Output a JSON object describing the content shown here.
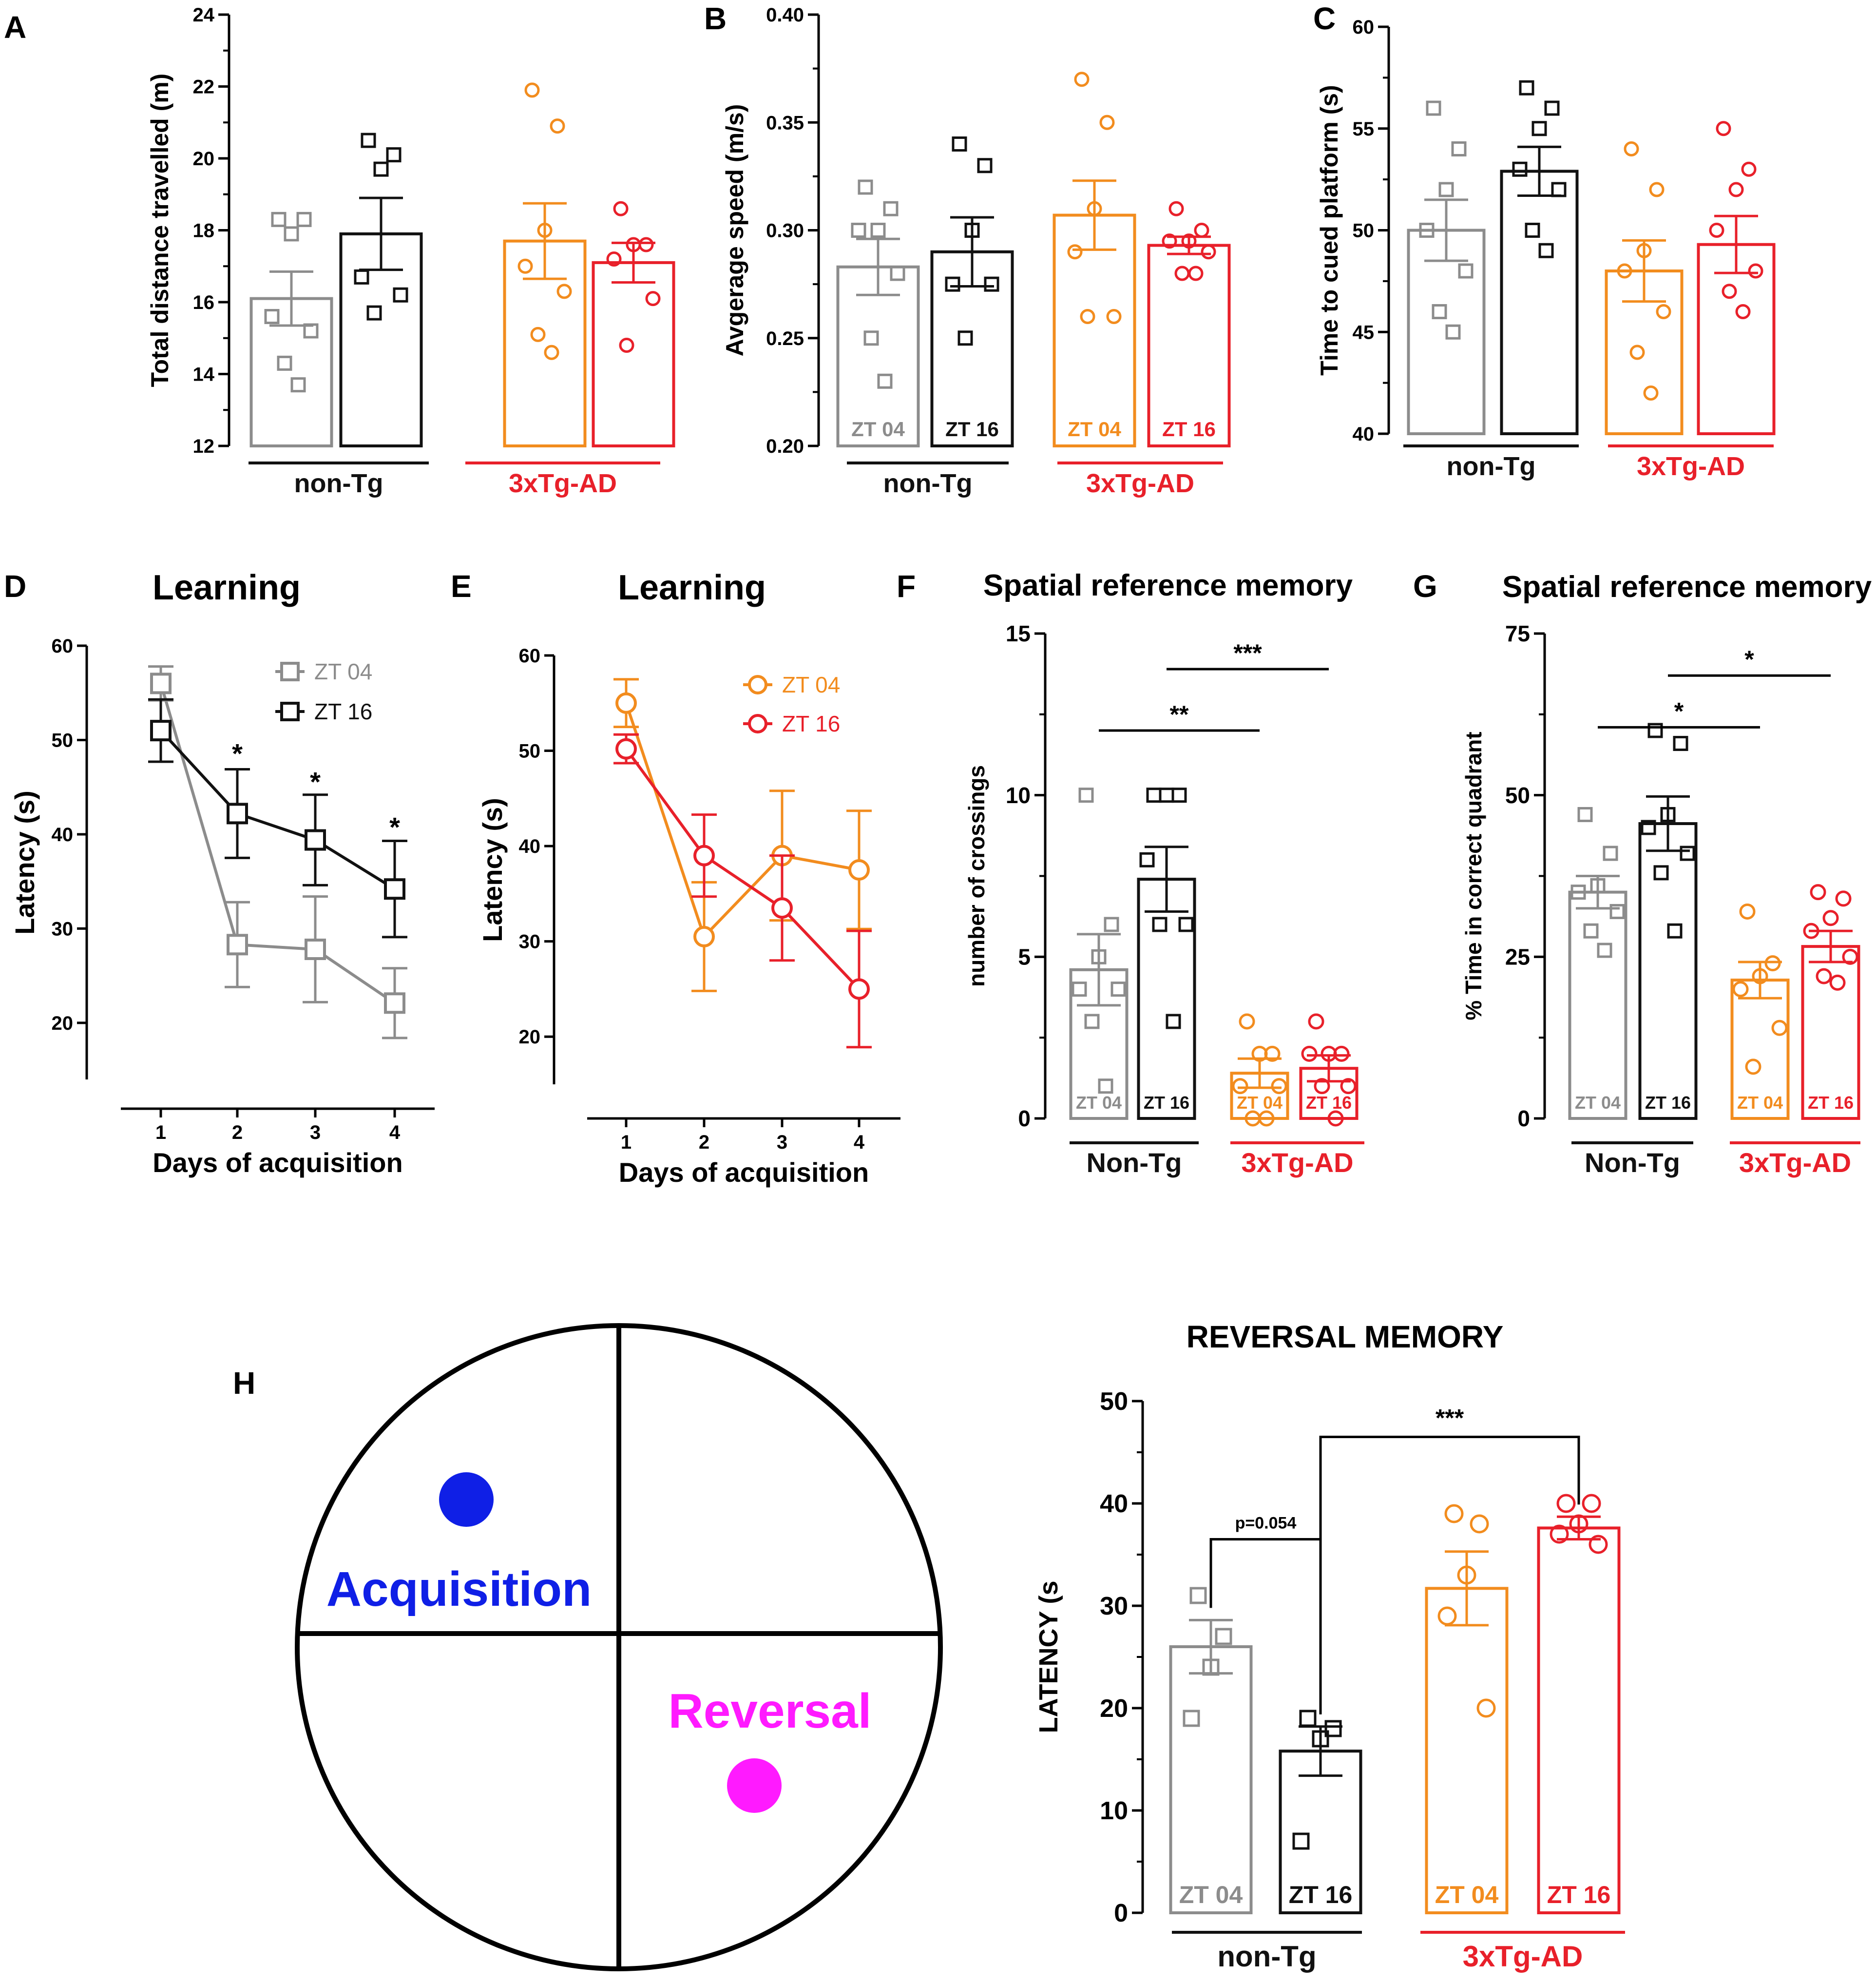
{
  "colors": {
    "grey": "#8c8c8c",
    "black": "#111111",
    "orange": "#f28c1e",
    "red": "#e8202a",
    "blue": "#0f1fe6",
    "magenta": "#ff1aff"
  },
  "panel_letters": [
    "A",
    "B",
    "C",
    "D",
    "E",
    "F",
    "G",
    "H"
  ],
  "groups": {
    "nontg_lower": "non-Tg",
    "nontg_cap": "Non-Tg",
    "tg": "3xTg-AD"
  },
  "h_quadrants": {
    "acquisition": "Acquisition",
    "reversal": "Reversal"
  },
  "chart_data": [
    {
      "id": "A",
      "type": "bar",
      "title": "",
      "ylabel": "Total distance travelled (m)",
      "ylim": [
        12,
        24
      ],
      "yticks": [
        "12",
        "14",
        "16",
        "18",
        "20",
        "22",
        "24"
      ],
      "bar_labels": [
        "",
        "",
        "",
        ""
      ],
      "group_labels": [
        "non-Tg",
        "3xTg-AD"
      ],
      "series": [
        {
          "name": "non-Tg ZT 04",
          "mean": 16.1,
          "sem": 0.75,
          "points": [
            18.3,
            18.3,
            17.9,
            15.6,
            15.2,
            14.3,
            13.7
          ]
        },
        {
          "name": "non-Tg ZT 16",
          "mean": 17.9,
          "sem": 1.0,
          "points": [
            20.5,
            20.1,
            19.7,
            16.7,
            16.2,
            15.7
          ]
        },
        {
          "name": "3xTg-AD ZT 04",
          "mean": 17.7,
          "sem": 1.05,
          "points": [
            21.9,
            20.9,
            18.0,
            17.0,
            16.3,
            15.1,
            14.6
          ]
        },
        {
          "name": "3xTg-AD ZT 16",
          "mean": 17.1,
          "sem": 0.55,
          "points": [
            18.6,
            17.6,
            17.6,
            17.2,
            16.1,
            14.8
          ]
        }
      ]
    },
    {
      "id": "B",
      "type": "bar",
      "title": "",
      "ylabel": "Avgerage speed (m/s)",
      "ylim": [
        0.2,
        0.4
      ],
      "yticks": [
        "0.20",
        "0.25",
        "0.30",
        "0.35",
        "0.40"
      ],
      "bar_labels": [
        "ZT 04",
        "ZT 16",
        "ZT 04",
        "ZT 16"
      ],
      "group_labels": [
        "non-Tg",
        "3xTg-AD"
      ],
      "series": [
        {
          "name": "non-Tg ZT 04",
          "mean": 0.283,
          "sem": 0.013,
          "points": [
            0.32,
            0.31,
            0.3,
            0.3,
            0.28,
            0.25,
            0.23
          ]
        },
        {
          "name": "non-Tg ZT 16",
          "mean": 0.29,
          "sem": 0.016,
          "points": [
            0.34,
            0.33,
            0.3,
            0.275,
            0.275,
            0.25
          ]
        },
        {
          "name": "3xTg-AD ZT 04",
          "mean": 0.307,
          "sem": 0.016,
          "points": [
            0.37,
            0.35,
            0.31,
            0.29,
            0.26,
            0.26
          ]
        },
        {
          "name": "3xTg-AD ZT 16",
          "mean": 0.293,
          "sem": 0.004,
          "points": [
            0.31,
            0.3,
            0.295,
            0.295,
            0.29,
            0.28,
            0.28
          ]
        }
      ]
    },
    {
      "id": "C",
      "type": "bar",
      "title": "",
      "ylabel": "Time to cued platform (s)",
      "ylim": [
        40,
        60
      ],
      "yticks": [
        "40",
        "45",
        "50",
        "55",
        "60"
      ],
      "bar_labels": [
        "",
        "",
        "",
        ""
      ],
      "group_labels": [
        "non-Tg",
        "3xTg-AD"
      ],
      "series": [
        {
          "name": "non-Tg ZT 04",
          "mean": 50.0,
          "sem": 1.5,
          "points": [
            56,
            54,
            52,
            50,
            48,
            46,
            45
          ]
        },
        {
          "name": "non-Tg ZT 16",
          "mean": 52.9,
          "sem": 1.2,
          "points": [
            57,
            56,
            55,
            53,
            52,
            50,
            49
          ]
        },
        {
          "name": "3xTg-AD ZT 04",
          "mean": 48.0,
          "sem": 1.5,
          "points": [
            54,
            52,
            49,
            48,
            46,
            44,
            42
          ]
        },
        {
          "name": "3xTg-AD ZT 16",
          "mean": 49.3,
          "sem": 1.4,
          "points": [
            55,
            53,
            52,
            50,
            48,
            47,
            46
          ]
        }
      ]
    },
    {
      "id": "D",
      "type": "line",
      "title": "Learning",
      "xlabel": "Days of acquisition",
      "ylabel": "Latency (s)",
      "x": [
        1,
        2,
        3,
        4
      ],
      "xticks": [
        "1",
        "2",
        "3",
        "4"
      ],
      "ylim": [
        14,
        60
      ],
      "yticks": [
        "20",
        "30",
        "40",
        "50",
        "60"
      ],
      "annotations": [
        {
          "day": 2,
          "y": 48.5,
          "text": "*"
        },
        {
          "day": 3,
          "y": 45.5,
          "text": "*"
        },
        {
          "day": 4,
          "y": 40.7,
          "text": "*"
        }
      ],
      "series": [
        {
          "name": "ZT 04",
          "color": "grey",
          "values": [
            56,
            28.3,
            27.8,
            22.1
          ],
          "sem": [
            1.8,
            4.5,
            5.6,
            3.7
          ]
        },
        {
          "name": "ZT 16",
          "color": "black",
          "values": [
            51,
            42.2,
            39.4,
            34.2
          ],
          "sem": [
            3.3,
            4.7,
            4.8,
            5.1
          ]
        }
      ]
    },
    {
      "id": "E",
      "type": "line",
      "title": "Learning",
      "xlabel": "Days of acquisition",
      "ylabel": "Latency (s)",
      "x": [
        1,
        2,
        3,
        4
      ],
      "xticks": [
        "1",
        "2",
        "3",
        "4"
      ],
      "ylim": [
        15,
        60
      ],
      "yticks": [
        "20",
        "30",
        "40",
        "50",
        "60"
      ],
      "annotations": [],
      "series": [
        {
          "name": "ZT 04",
          "color": "orange",
          "values": [
            55,
            30.5,
            39,
            37.5
          ],
          "sem": [
            2.5,
            5.7,
            6.8,
            6.2
          ]
        },
        {
          "name": "ZT 16",
          "color": "red",
          "values": [
            50.2,
            39,
            33.5,
            25
          ],
          "sem": [
            1.5,
            4.3,
            5.5,
            6.1
          ]
        }
      ]
    },
    {
      "id": "F",
      "type": "bar",
      "title": "Spatial reference memory",
      "ylabel": "number of crossings",
      "ylim": [
        0,
        15
      ],
      "yticks": [
        "0",
        "5",
        "10",
        "15"
      ],
      "bar_labels": [
        "ZT 04",
        "ZT 16",
        "ZT 04",
        "ZT 16"
      ],
      "group_labels": [
        "Non-Tg",
        "3xTg-AD"
      ],
      "brackets": [
        {
          "from": 0,
          "to": 2,
          "y": 12.0,
          "text": "**"
        },
        {
          "from": 1,
          "to": 3,
          "y": 13.9,
          "text": "***"
        }
      ],
      "series": [
        {
          "name": "Non-Tg ZT 04",
          "mean": 4.6,
          "sem": 1.1,
          "points": [
            10,
            6,
            5,
            4,
            4,
            3,
            1
          ]
        },
        {
          "name": "Non-Tg ZT 16",
          "mean": 7.4,
          "sem": 1.0,
          "points": [
            10,
            10,
            10,
            8,
            6,
            6,
            3
          ]
        },
        {
          "name": "3xTg-AD ZT 04",
          "mean": 1.4,
          "sem": 0.45,
          "points": [
            3,
            2,
            2,
            1,
            1,
            0,
            0
          ]
        },
        {
          "name": "3xTg-AD ZT 16",
          "mean": 1.55,
          "sem": 0.4,
          "points": [
            3,
            2,
            2,
            2,
            1,
            1,
            0
          ]
        }
      ]
    },
    {
      "id": "G",
      "type": "bar",
      "title": "Spatial reference memory",
      "ylabel": "% Time in correct quadrant",
      "ylim": [
        0,
        75
      ],
      "yticks": [
        "0",
        "25",
        "50",
        "75"
      ],
      "bar_labels": [
        "ZT 04",
        "ZT 16",
        "ZT 04",
        "ZT 16"
      ],
      "group_labels": [
        "Non-Tg",
        "3xTg-AD"
      ],
      "brackets": [
        {
          "from": 0,
          "to": 2,
          "y": 60.5,
          "text": "*"
        },
        {
          "from": 1,
          "to": 3,
          "y": 68.5,
          "text": "*"
        }
      ],
      "series": [
        {
          "name": "Non-Tg ZT 04",
          "mean": 35,
          "sem": 2.5,
          "points": [
            47,
            41,
            36,
            35,
            32,
            29,
            26
          ]
        },
        {
          "name": "Non-Tg ZT 16",
          "mean": 45.6,
          "sem": 4.2,
          "points": [
            60,
            58,
            47,
            45,
            41,
            38,
            29
          ]
        },
        {
          "name": "3xTg-AD ZT 04",
          "mean": 21.4,
          "sem": 2.8,
          "points": [
            32,
            24,
            22,
            20,
            14,
            8
          ]
        },
        {
          "name": "3xTg-AD ZT 16",
          "mean": 26.6,
          "sem": 2.4,
          "points": [
            35,
            34,
            31,
            29,
            25,
            22,
            21
          ]
        }
      ]
    },
    {
      "id": "H",
      "type": "bar",
      "title": "REVERSAL MEMORY",
      "ylabel": "LATENCY (s",
      "ylim": [
        0,
        50
      ],
      "yticks": [
        "0",
        "10",
        "20",
        "30",
        "40",
        "50"
      ],
      "bar_labels": [
        "ZT 04",
        "ZT 16",
        "ZT 04",
        "ZT 16"
      ],
      "group_labels": [
        "non-Tg",
        "3xTg-AD"
      ],
      "brackets": [
        {
          "from": 0,
          "to": 1,
          "y": 36.5,
          "text": "p=0.054"
        },
        {
          "from": 1,
          "to": 3,
          "y": 46.5,
          "text": "***"
        }
      ],
      "series": [
        {
          "name": "non-Tg ZT 04",
          "mean": 26,
          "sem": 2.6,
          "points": [
            31,
            27,
            24,
            19
          ]
        },
        {
          "name": "non-Tg ZT 16",
          "mean": 15.8,
          "sem": 2.4,
          "points": [
            19,
            18,
            17,
            7
          ]
        },
        {
          "name": "3xTg-AD ZT 04",
          "mean": 31.7,
          "sem": 3.6,
          "points": [
            39,
            38,
            33,
            29,
            20
          ]
        },
        {
          "name": "3xTg-AD ZT 16",
          "mean": 37.6,
          "sem": 1.1,
          "points": [
            40,
            40,
            38,
            37,
            36
          ]
        }
      ]
    }
  ]
}
